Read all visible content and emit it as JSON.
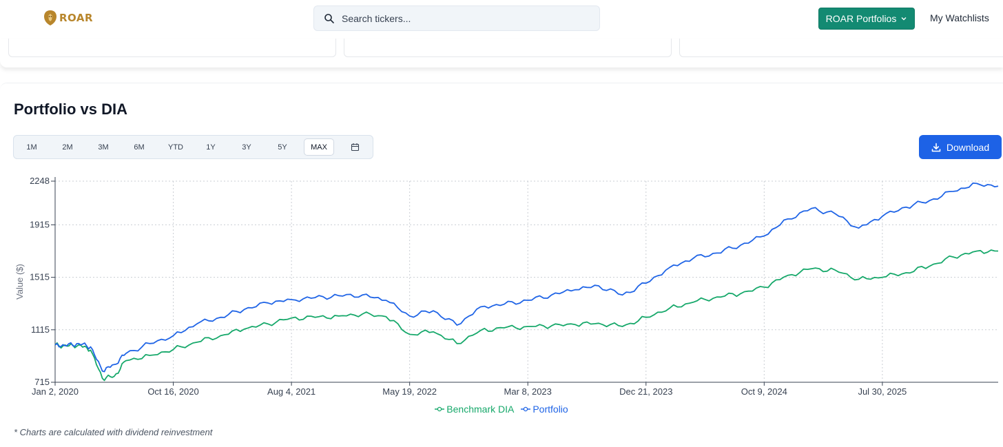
{
  "header": {
    "logo_text": "ROAR",
    "search_placeholder": "Search tickers...",
    "portfolios_button": "ROAR Portfolios",
    "watchlists_link": "My Watchlists"
  },
  "panel": {
    "title": "Portfolio vs DIA",
    "ranges": [
      "1M",
      "2M",
      "3M",
      "6M",
      "YTD",
      "1Y",
      "3Y",
      "5Y",
      "MAX"
    ],
    "active_range": "MAX",
    "download_label": "Download",
    "footnote": "* Charts are calculated with dividend reinvestment"
  },
  "colors": {
    "benchmark": "#16a86a",
    "portfolio": "#1f64e6",
    "accent_teal": "#138a72",
    "download_blue": "#1d62e6"
  },
  "chart_data": {
    "type": "line",
    "ylabel": "Value ($)",
    "ylim": [
      715,
      2248
    ],
    "yticks": [
      715,
      1115,
      1515,
      1915,
      2248
    ],
    "x_ticks": [
      "Jan 2, 2020",
      "Oct 16, 2020",
      "Aug 4, 2021",
      "May 19, 2022",
      "Mar 8, 2023",
      "Dec 21, 2023",
      "Oct 9, 2024",
      "Jul 30, 2025"
    ],
    "x_tick_positions": [
      0,
      1,
      2,
      3,
      4,
      5,
      6,
      7
    ],
    "x_range": [
      0,
      7.98
    ],
    "grid": true,
    "legend": "bottom-center",
    "series": [
      {
        "name": "Benchmark DIA",
        "color": "#16a86a",
        "points": [
          [
            0,
            1000
          ],
          [
            0.1,
            990
          ],
          [
            0.2,
            1000
          ],
          [
            0.3,
            960
          ],
          [
            0.4,
            745
          ],
          [
            0.5,
            760
          ],
          [
            0.6,
            880
          ],
          [
            0.8,
            920
          ],
          [
            1.0,
            965
          ],
          [
            1.2,
            1020
          ],
          [
            1.4,
            1070
          ],
          [
            1.6,
            1120
          ],
          [
            1.8,
            1160
          ],
          [
            2.0,
            1205
          ],
          [
            2.2,
            1210
          ],
          [
            2.4,
            1220
          ],
          [
            2.6,
            1235
          ],
          [
            2.8,
            1215
          ],
          [
            3.0,
            1080
          ],
          [
            3.2,
            1100
          ],
          [
            3.4,
            1010
          ],
          [
            3.6,
            1110
          ],
          [
            3.8,
            1130
          ],
          [
            4.0,
            1140
          ],
          [
            4.2,
            1145
          ],
          [
            4.4,
            1155
          ],
          [
            4.6,
            1165
          ],
          [
            4.8,
            1140
          ],
          [
            5.0,
            1210
          ],
          [
            5.2,
            1280
          ],
          [
            5.4,
            1325
          ],
          [
            5.6,
            1365
          ],
          [
            5.8,
            1390
          ],
          [
            6.0,
            1440
          ],
          [
            6.2,
            1530
          ],
          [
            6.4,
            1580
          ],
          [
            6.6,
            1570
          ],
          [
            6.8,
            1500
          ],
          [
            7.0,
            1515
          ],
          [
            7.2,
            1550
          ],
          [
            7.4,
            1600
          ],
          [
            7.6,
            1670
          ],
          [
            7.8,
            1715
          ],
          [
            7.98,
            1715
          ]
        ]
      },
      {
        "name": "Portfolio",
        "color": "#1f64e6",
        "points": [
          [
            0,
            1000
          ],
          [
            0.1,
            995
          ],
          [
            0.2,
            1010
          ],
          [
            0.3,
            985
          ],
          [
            0.4,
            800
          ],
          [
            0.5,
            850
          ],
          [
            0.6,
            935
          ],
          [
            0.8,
            1010
          ],
          [
            1.0,
            1070
          ],
          [
            1.2,
            1160
          ],
          [
            1.4,
            1210
          ],
          [
            1.6,
            1270
          ],
          [
            1.8,
            1320
          ],
          [
            2.0,
            1345
          ],
          [
            2.2,
            1360
          ],
          [
            2.4,
            1375
          ],
          [
            2.6,
            1380
          ],
          [
            2.8,
            1340
          ],
          [
            3.0,
            1220
          ],
          [
            3.2,
            1260
          ],
          [
            3.4,
            1150
          ],
          [
            3.6,
            1290
          ],
          [
            3.8,
            1310
          ],
          [
            4.0,
            1340
          ],
          [
            4.2,
            1380
          ],
          [
            4.4,
            1420
          ],
          [
            4.6,
            1450
          ],
          [
            4.8,
            1380
          ],
          [
            5.0,
            1470
          ],
          [
            5.2,
            1590
          ],
          [
            5.4,
            1660
          ],
          [
            5.6,
            1700
          ],
          [
            5.8,
            1760
          ],
          [
            6.0,
            1830
          ],
          [
            6.2,
            1960
          ],
          [
            6.4,
            2040
          ],
          [
            6.6,
            2000
          ],
          [
            6.8,
            1890
          ],
          [
            7.0,
            1980
          ],
          [
            7.2,
            2050
          ],
          [
            7.4,
            2100
          ],
          [
            7.6,
            2170
          ],
          [
            7.8,
            2230
          ],
          [
            7.98,
            2210
          ]
        ]
      }
    ]
  }
}
